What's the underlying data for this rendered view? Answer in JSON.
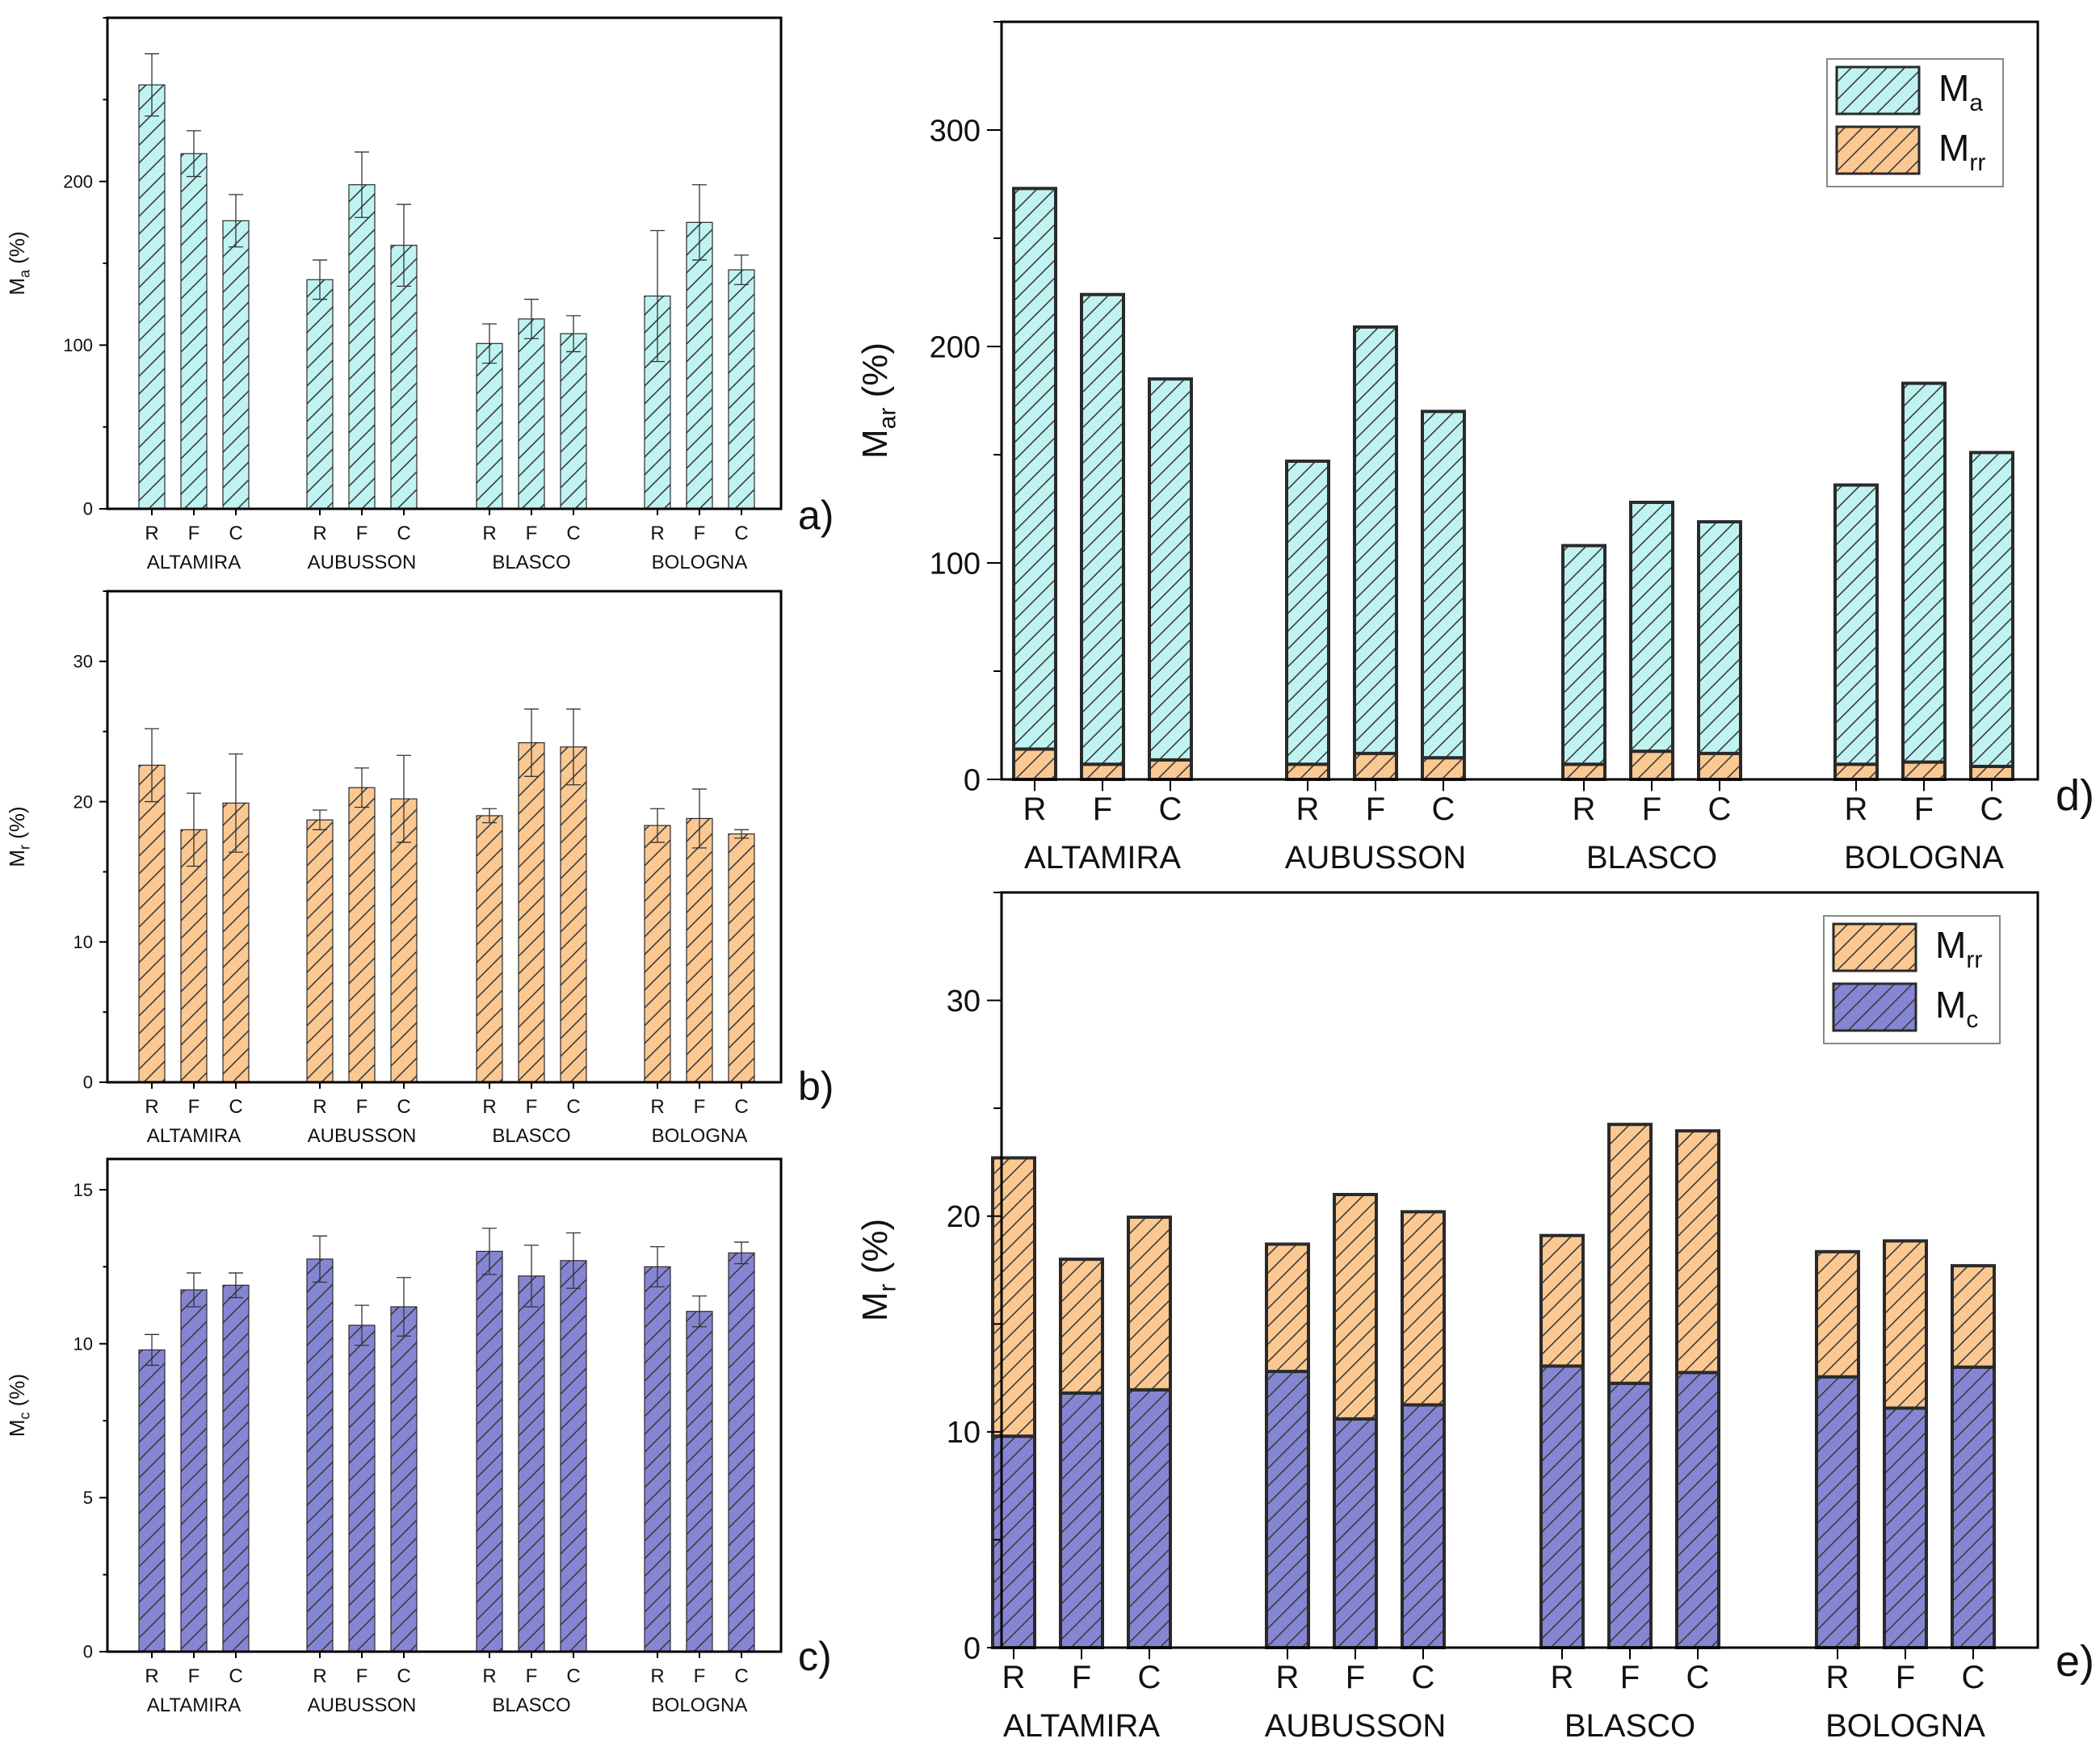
{
  "figure": {
    "colors": {
      "ma": "#bff3f2",
      "mrr": "#fbc891",
      "mc": "#8585d4",
      "stroke": "#2a2a2a",
      "err": "#333333"
    }
  },
  "chart_data": [
    {
      "id": "a",
      "type": "bar",
      "panel_label": "a)",
      "ylabel": "M",
      "ylabel_sub": "a",
      "ylabel_suffix": " (%)",
      "ylim": [
        0,
        300
      ],
      "yticks": [
        0,
        100,
        200
      ],
      "groups": [
        "ALTAMIRA",
        "AUBUSSON",
        "BLASCO",
        "BOLOGNA"
      ],
      "subcategories": [
        "R",
        "F",
        "C"
      ],
      "values": [
        [
          259,
          217,
          176
        ],
        [
          140,
          198,
          161
        ],
        [
          101,
          116,
          107
        ],
        [
          130,
          175,
          146
        ]
      ],
      "errors": [
        [
          19,
          14,
          16
        ],
        [
          12,
          20,
          25
        ],
        [
          12,
          12,
          11
        ],
        [
          40,
          23,
          9
        ]
      ],
      "fill": "ma"
    },
    {
      "id": "b",
      "type": "bar",
      "panel_label": "b)",
      "ylabel": "M",
      "ylabel_sub": "r",
      "ylabel_suffix": " (%)",
      "ylim": [
        0,
        35
      ],
      "yticks": [
        0,
        10,
        20,
        30
      ],
      "groups": [
        "ALTAMIRA",
        "AUBUSSON",
        "BLASCO",
        "BOLOGNA"
      ],
      "subcategories": [
        "R",
        "F",
        "C"
      ],
      "values": [
        [
          22.6,
          18.0,
          19.9
        ],
        [
          18.7,
          21.0,
          20.2
        ],
        [
          19.0,
          24.2,
          23.9
        ],
        [
          18.3,
          18.8,
          17.7
        ]
      ],
      "errors": [
        [
          2.6,
          2.6,
          3.5
        ],
        [
          0.7,
          1.4,
          3.1
        ],
        [
          0.5,
          2.4,
          2.7
        ],
        [
          1.2,
          2.1,
          0.3
        ]
      ],
      "fill": "mrr"
    },
    {
      "id": "c",
      "type": "bar",
      "panel_label": "c)",
      "ylabel": "M",
      "ylabel_sub": "c",
      "ylabel_suffix": " (%)",
      "ylim": [
        0,
        16
      ],
      "yticks": [
        0,
        5,
        10,
        15
      ],
      "groups": [
        "ALTAMIRA",
        "AUBUSSON",
        "BLASCO",
        "BOLOGNA"
      ],
      "subcategories": [
        "R",
        "F",
        "C"
      ],
      "values": [
        [
          9.8,
          11.75,
          11.9
        ],
        [
          12.75,
          10.6,
          11.2
        ],
        [
          13.0,
          12.2,
          12.7
        ],
        [
          12.5,
          11.05,
          12.95
        ]
      ],
      "errors": [
        [
          0.5,
          0.55,
          0.4
        ],
        [
          0.75,
          0.65,
          0.95
        ],
        [
          0.75,
          1.0,
          0.9
        ],
        [
          0.65,
          0.5,
          0.35
        ]
      ],
      "fill": "mc"
    },
    {
      "id": "d",
      "type": "bar",
      "stacked": true,
      "panel_label": "d)",
      "ylabel": "M",
      "ylabel_sub": "ar",
      "ylabel_suffix": " (%)",
      "ylim": [
        0,
        350
      ],
      "yticks": [
        0,
        100,
        200,
        300
      ],
      "groups": [
        "ALTAMIRA",
        "AUBUSSON",
        "BLASCO",
        "BOLOGNA"
      ],
      "subcategories": [
        "R",
        "F",
        "C"
      ],
      "series": [
        {
          "name": "M",
          "sub": "rr",
          "fill": "mrr",
          "values": [
            [
              14,
              7,
              9
            ],
            [
              7,
              12,
              10
            ],
            [
              7,
              13,
              12
            ],
            [
              7,
              8,
              6
            ]
          ]
        },
        {
          "name": "M",
          "sub": "a",
          "fill": "ma",
          "values": [
            [
              259,
              217,
              176
            ],
            [
              140,
              197,
              160
            ],
            [
              101,
              115,
              107
            ],
            [
              129,
              175,
              145
            ]
          ]
        }
      ],
      "legend": [
        {
          "name": "M",
          "sub": "a",
          "fill": "ma"
        },
        {
          "name": "M",
          "sub": "rr",
          "fill": "mrr"
        }
      ],
      "legend_position": "top-right"
    },
    {
      "id": "e",
      "type": "bar",
      "stacked": true,
      "panel_label": "e)",
      "ylabel": "M",
      "ylabel_sub": "r",
      "ylabel_suffix": " (%)",
      "ylim": [
        0,
        35
      ],
      "yticks": [
        0,
        10,
        20,
        30
      ],
      "groups": [
        "ALTAMIRA",
        "AUBUSSON",
        "BLASCO",
        "BOLOGNA"
      ],
      "subcategories": [
        "R",
        "F",
        "C"
      ],
      "series": [
        {
          "name": "M",
          "sub": "c",
          "fill": "mc",
          "values": [
            [
              9.8,
              11.8,
              11.95
            ],
            [
              12.8,
              10.6,
              11.25
            ],
            [
              13.05,
              12.25,
              12.75
            ],
            [
              12.55,
              11.1,
              13.0
            ]
          ]
        },
        {
          "name": "M",
          "sub": "rr",
          "fill": "mrr",
          "values": [
            [
              12.9,
              6.2,
              8.0
            ],
            [
              5.9,
              10.4,
              8.95
            ],
            [
              6.05,
              12.0,
              11.2
            ],
            [
              5.8,
              7.75,
              4.7
            ]
          ]
        }
      ],
      "legend": [
        {
          "name": "M",
          "sub": "rr",
          "fill": "mrr"
        },
        {
          "name": "M",
          "sub": "c",
          "fill": "mc"
        }
      ],
      "legend_position": "top-right"
    }
  ]
}
